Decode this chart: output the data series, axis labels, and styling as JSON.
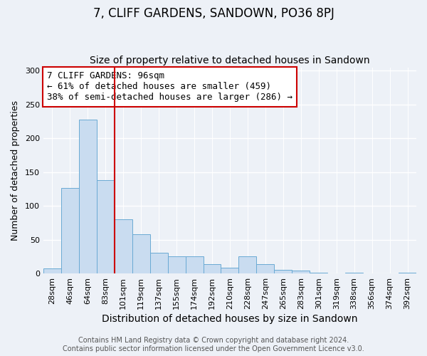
{
  "title": "7, CLIFF GARDENS, SANDOWN, PO36 8PJ",
  "subtitle": "Size of property relative to detached houses in Sandown",
  "xlabel": "Distribution of detached houses by size in Sandown",
  "ylabel": "Number of detached properties",
  "bar_labels": [
    "28sqm",
    "46sqm",
    "64sqm",
    "83sqm",
    "101sqm",
    "119sqm",
    "137sqm",
    "155sqm",
    "174sqm",
    "192sqm",
    "210sqm",
    "228sqm",
    "247sqm",
    "265sqm",
    "283sqm",
    "301sqm",
    "319sqm",
    "338sqm",
    "356sqm",
    "374sqm",
    "392sqm"
  ],
  "bar_values": [
    7,
    126,
    228,
    138,
    80,
    58,
    31,
    25,
    25,
    14,
    8,
    25,
    14,
    5,
    4,
    1,
    0,
    1,
    0,
    0,
    1
  ],
  "bar_color": "#c9dcf0",
  "bar_edge_color": "#6aaad4",
  "vline_x_index": 4,
  "vline_color": "#cc0000",
  "annotation_text": "7 CLIFF GARDENS: 96sqm\n← 61% of detached houses are smaller (459)\n38% of semi-detached houses are larger (286) →",
  "annotation_box_facecolor": "#ffffff",
  "annotation_box_edgecolor": "#cc0000",
  "ylim": [
    0,
    305
  ],
  "yticks": [
    0,
    50,
    100,
    150,
    200,
    250,
    300
  ],
  "bg_color": "#edf1f7",
  "plot_bg_color": "#edf1f7",
  "title_fontsize": 12,
  "subtitle_fontsize": 10,
  "xlabel_fontsize": 10,
  "ylabel_fontsize": 9,
  "tick_fontsize": 8,
  "annotation_fontsize": 9,
  "footer_fontsize": 7,
  "footer_line1": "Contains HM Land Registry data © Crown copyright and database right 2024.",
  "footer_line2": "Contains public sector information licensed under the Open Government Licence v3.0."
}
